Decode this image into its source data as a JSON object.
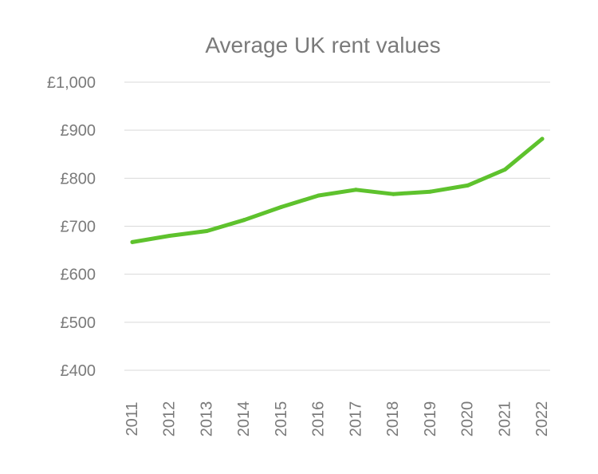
{
  "chart_data": {
    "type": "line",
    "title": "Average UK rent values",
    "xlabel": "",
    "ylabel": "",
    "categories": [
      "2011",
      "2012",
      "2013",
      "2014",
      "2015",
      "2016",
      "2017",
      "2018",
      "2019",
      "2020",
      "2021",
      "2022"
    ],
    "series": [
      {
        "values": [
          667,
          680,
          690,
          713,
          740,
          764,
          776,
          767,
          772,
          785,
          818,
          882
        ]
      }
    ],
    "ylim": [
      400,
      1000
    ],
    "yticks": [
      400,
      500,
      600,
      700,
      800,
      900,
      1000
    ],
    "ytick_labels": [
      "£400",
      "£500",
      "£600",
      "£700",
      "£800",
      "£900",
      "£1,000"
    ],
    "grid": true,
    "legend": "none",
    "colors": {
      "line": "#5ec22d",
      "grid": "#d9d9d9",
      "text": "#7a7a7a"
    }
  }
}
